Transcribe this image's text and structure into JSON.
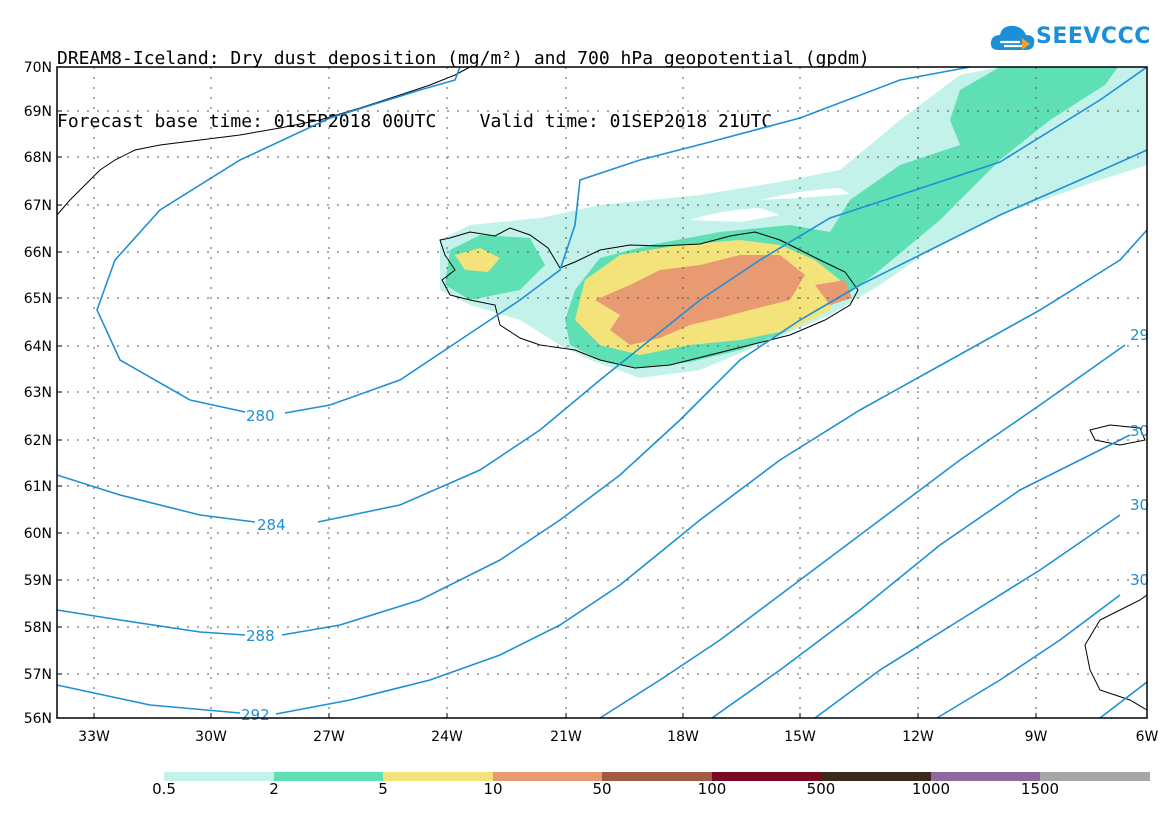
{
  "title": {
    "line1": "DREAM8-Iceland: Dry dust deposition (mg/m²) and 700 hPa geopotential (gpdm)",
    "line2": "Forecast base time: 01SEP2018 00UTC    Valid time: 01SEP2018 21UTC"
  },
  "logo": {
    "text": "SEEVCCC",
    "icon": "cloud-icon",
    "color": "#1d8fd8"
  },
  "map": {
    "lat_labels": [
      "70N",
      "69N",
      "68N",
      "67N",
      "66N",
      "65N",
      "64N",
      "63N",
      "62N",
      "61N",
      "60N",
      "59N",
      "58N",
      "57N",
      "56N"
    ],
    "lon_labels": [
      "33W",
      "30W",
      "27W",
      "24W",
      "21W",
      "18W",
      "15W",
      "12W",
      "9W",
      "6W"
    ],
    "contour_labels": [
      "280",
      "284",
      "288",
      "292",
      "29",
      "30",
      "30",
      "30"
    ],
    "contour_color": "#1e90d6"
  },
  "colorbar": {
    "labels": [
      "0.5",
      "2",
      "5",
      "10",
      "50",
      "100",
      "500",
      "1000",
      "1500"
    ],
    "colors": [
      "#c2f2ea",
      "#5fe0b4",
      "#f3e37a",
      "#e89a73",
      "#a05a44",
      "#7a0a24",
      "#3b2a1c",
      "#8c6aa0",
      "#a6a6a6"
    ]
  }
}
